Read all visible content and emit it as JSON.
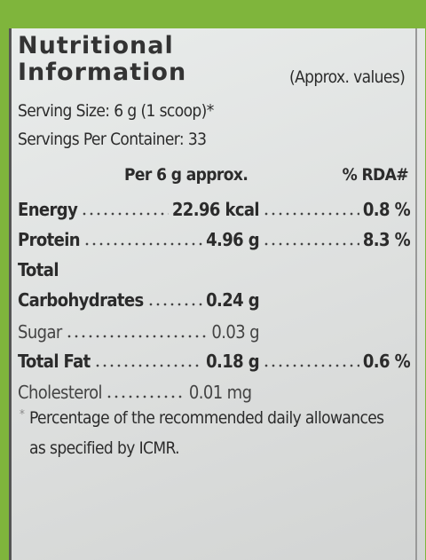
{
  "header": {
    "title_line1": "Nutritional",
    "title_line2": "Information",
    "note": "(Approx. values)"
  },
  "serving_size": "Serving Size: 6 g (1 scoop)*",
  "servings": "Servings Per Container: 33",
  "table": {
    "columns": [
      "Per 6 g approx.",
      "% RDA#"
    ],
    "rows": [
      [
        "Energy",
        "22.96 kcal",
        "0.8 %"
      ],
      [
        "Protein",
        "4.96 g",
        "8.3 %"
      ],
      [
        "Total"
      ],
      [
        "Carbohydrates",
        "0.24 g"
      ],
      [
        "Sugar",
        "0.03 g"
      ],
      [
        "Total Fat",
        "0.18 g",
        "0.6 %"
      ],
      [
        "Cholesterol",
        "0.01 mg"
      ]
    ]
  },
  "footnote": {
    "marker": "*",
    "line1": "Percentage of the recommended daily allowances",
    "line2": "as specified by ICMR."
  }
}
